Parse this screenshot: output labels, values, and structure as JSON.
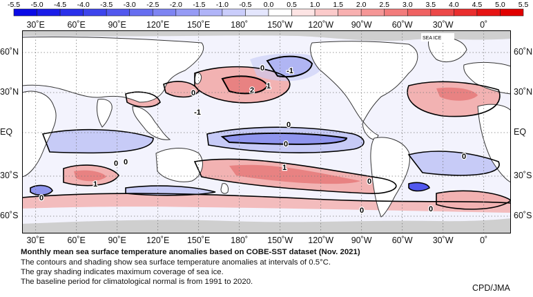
{
  "colorbar": {
    "ticks": [
      "-5.5",
      "-5.0",
      "-4.5",
      "-4.0",
      "-3.5",
      "-3.0",
      "-2.5",
      "-2.0",
      "-1.5",
      "-1.0",
      "-0.5",
      "0.0",
      "0.5",
      "1.0",
      "1.5",
      "2.0",
      "2.5",
      "3.0",
      "3.5",
      "4.0",
      "4.5",
      "5.0",
      "5.5"
    ],
    "colors": [
      "#0a0ae6",
      "#1a1ce8",
      "#2a30ea",
      "#3d44ec",
      "#5258ee",
      "#676ef0",
      "#7e84f2",
      "#969bf5",
      "#b0b4f8",
      "#cacdfb",
      "#e4e6fd",
      "#ffffff",
      "#fde4e4",
      "#fbcaca",
      "#f8b0b0",
      "#f59696",
      "#f27c7c",
      "#ef6262",
      "#ec4848",
      "#e92e2e",
      "#e61414",
      "#e00000"
    ]
  },
  "lon_labels": [
    "30˚E",
    "60˚E",
    "90˚E",
    "120˚E",
    "150˚E",
    "180˚",
    "150˚W",
    "120˚W",
    "90˚W",
    "60˚W",
    "30˚W",
    "0˚"
  ],
  "lat_labels": [
    "60˚N",
    "30˚N",
    "EQ",
    "30˚S",
    "60˚S"
  ],
  "map": {
    "sea_ice_label": "SEA ICE",
    "contour_labels": [
      "0",
      "0",
      "-1",
      "2",
      "1",
      "0",
      "0",
      "-1",
      "1",
      "0",
      "0",
      "0",
      "1",
      "0",
      "0",
      "0",
      "0"
    ],
    "colors": {
      "land": "#ffffff",
      "ice": "#cfcfcf",
      "warm": "#f2b2b2",
      "warm_strong": "#e88282",
      "cool": "#c7cbf7",
      "cool_strong": "#8f95ee",
      "contour": "#000000",
      "grid": "#777777"
    }
  },
  "caption": {
    "title": "Monthly mean sea surface temperature anomalies based on COBE-SST dataset (Nov. 2021)",
    "line1": "The contours and shading show sea surface temperature anomalies at intervals of 0.5°C.",
    "line2": "The gray shading indicates maximum coverage of sea ice.",
    "line3": "The baseline period for climatological normal is from 1991 to 2020."
  },
  "credit": "CPD/JMA"
}
